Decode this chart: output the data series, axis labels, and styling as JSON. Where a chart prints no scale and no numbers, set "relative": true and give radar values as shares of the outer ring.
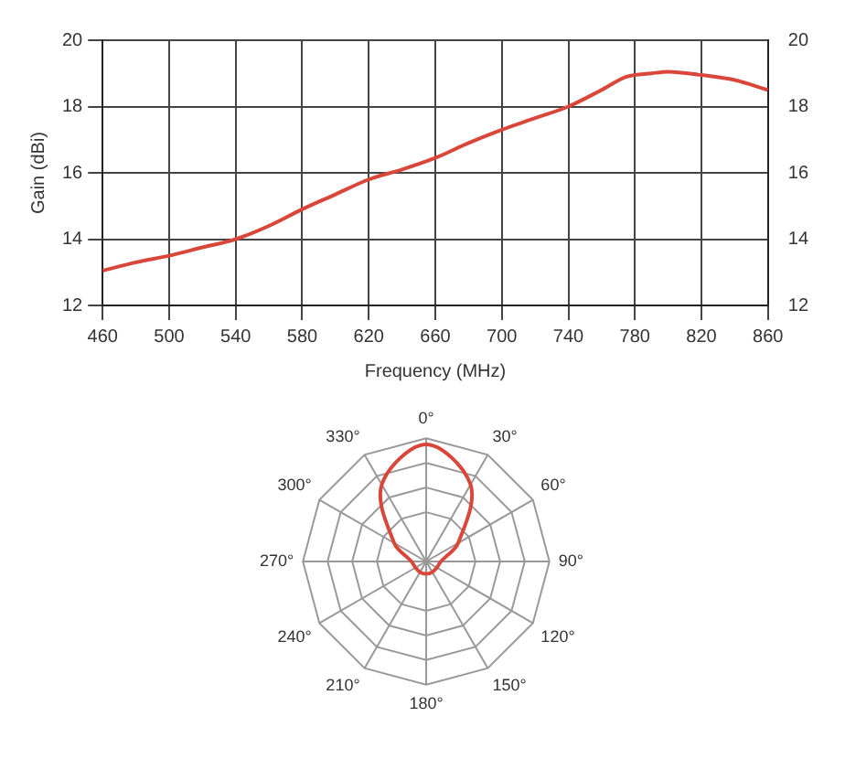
{
  "chart_data": [
    {
      "type": "line",
      "xlabel": "Frequency (MHz)",
      "ylabel": "Gain (dBi)",
      "x": [
        460,
        480,
        500,
        520,
        540,
        560,
        580,
        600,
        620,
        640,
        660,
        680,
        700,
        720,
        740,
        760,
        775,
        790,
        800,
        820,
        840,
        860
      ],
      "series": [
        {
          "color": "#d9463a",
          "values": [
            13.05,
            13.3,
            13.5,
            13.75,
            14.0,
            14.4,
            14.9,
            15.35,
            15.8,
            16.1,
            16.45,
            16.9,
            17.3,
            17.65,
            18.0,
            18.5,
            18.9,
            19.0,
            19.05,
            18.95,
            18.8,
            18.5
          ]
        }
      ],
      "xlim": [
        460,
        860
      ],
      "xticks": [
        460,
        500,
        540,
        580,
        620,
        660,
        700,
        740,
        780,
        820,
        860
      ],
      "ylim": [
        12,
        20
      ],
      "yticks": [
        12,
        14,
        16,
        18,
        20
      ],
      "y2lim": [
        12,
        20
      ],
      "y2ticks": [
        12,
        14,
        16,
        18,
        20
      ],
      "grid": true,
      "marker": "none",
      "line_style": "solid"
    },
    {
      "type": "radar",
      "relative": true,
      "categories": [
        "0°",
        "30°",
        "60°",
        "90°",
        "120°",
        "150°",
        "180°",
        "210°",
        "240°",
        "270°",
        "300°",
        "330°"
      ],
      "series": [
        {
          "color": "#d9463a",
          "values": [
            0.95,
            0.72,
            0.3,
            0.12,
            0.1,
            0.1,
            0.1,
            0.1,
            0.1,
            0.12,
            0.3,
            0.72
          ]
        }
      ],
      "grid": true,
      "marker": "none"
    }
  ]
}
